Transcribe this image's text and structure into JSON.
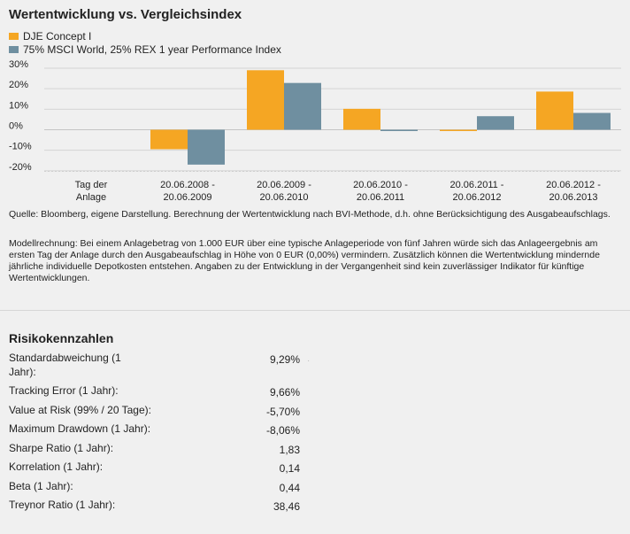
{
  "title": "Wertentwicklung vs. Vergleichsindex",
  "chart_data": {
    "type": "bar",
    "title": "Wertentwicklung vs. Vergleichsindex",
    "categories": [
      {
        "line1": "Tag der",
        "line2": "Anlage"
      },
      {
        "line1": "20.06.2008 -",
        "line2": "20.06.2009"
      },
      {
        "line1": "20.06.2009 -",
        "line2": "20.06.2010"
      },
      {
        "line1": "20.06.2010 -",
        "line2": "20.06.2011"
      },
      {
        "line1": "20.06.2011 -",
        "line2": "20.06.2012"
      },
      {
        "line1": "20.06.2012 -",
        "line2": "20.06.2013"
      }
    ],
    "series": [
      {
        "name": "DJE Concept I",
        "color": "#f5a623",
        "values": [
          null,
          -9.5,
          29.0,
          10.2,
          -0.6,
          18.6
        ]
      },
      {
        "name": "75% MSCI World, 25% REX 1 year Performance Index",
        "color": "#6f8fa0",
        "values": [
          null,
          -17.0,
          22.8,
          -0.6,
          6.6,
          8.2
        ]
      }
    ],
    "yticks": [
      30,
      20,
      10,
      0,
      -10,
      -20
    ],
    "ytick_labels": [
      "30%",
      "20%",
      "10%",
      "0%",
      "-10%",
      "-20%"
    ],
    "ylim": [
      -22,
      32
    ],
    "grid": true,
    "legend": "top-left"
  },
  "notes": {
    "source": "Quelle: Bloomberg, eigene Darstellung. Berechnung der Wertentwicklung nach BVI-Methode, d.h. ohne Berücksichtigung des Ausgabeaufschlags.",
    "model": "Modellrechnung: Bei einem Anlagebetrag von 1.000 EUR über eine typische Anlageperiode von fünf Jahren würde sich das Anlageergebnis am ersten Tag der Anlage durch den Ausgabeaufschlag in Höhe von 0 EUR (0,00%) vermindern. Zusätzlich können die Wertentwicklung mindernde jährliche individuelle Depotkosten entstehen. Angaben zu der Entwicklung in der Vergangenheit sind kein zuverlässiger Indikator für künftige Wertentwicklungen."
  },
  "risk": {
    "title": "Risikokennzahlen",
    "rows": [
      {
        "label": "Standardabweichung (1 Jahr):",
        "value": "9,29%"
      },
      {
        "label": "Tracking Error (1 Jahr):",
        "value": "9,66%"
      },
      {
        "label": "Value at Risk (99% / 20 Tage):",
        "value": "-5,70%"
      },
      {
        "label": "Maximum Drawdown (1 Jahr):",
        "value": "-8,06%"
      },
      {
        "label": "Sharpe Ratio (1 Jahr):",
        "value": "1,83"
      },
      {
        "label": "Korrelation (1 Jahr):",
        "value": "0,14"
      },
      {
        "label": "Beta (1 Jahr):",
        "value": "0,44"
      },
      {
        "label": "Treynor Ratio (1 Jahr):",
        "value": "38,46"
      }
    ]
  }
}
